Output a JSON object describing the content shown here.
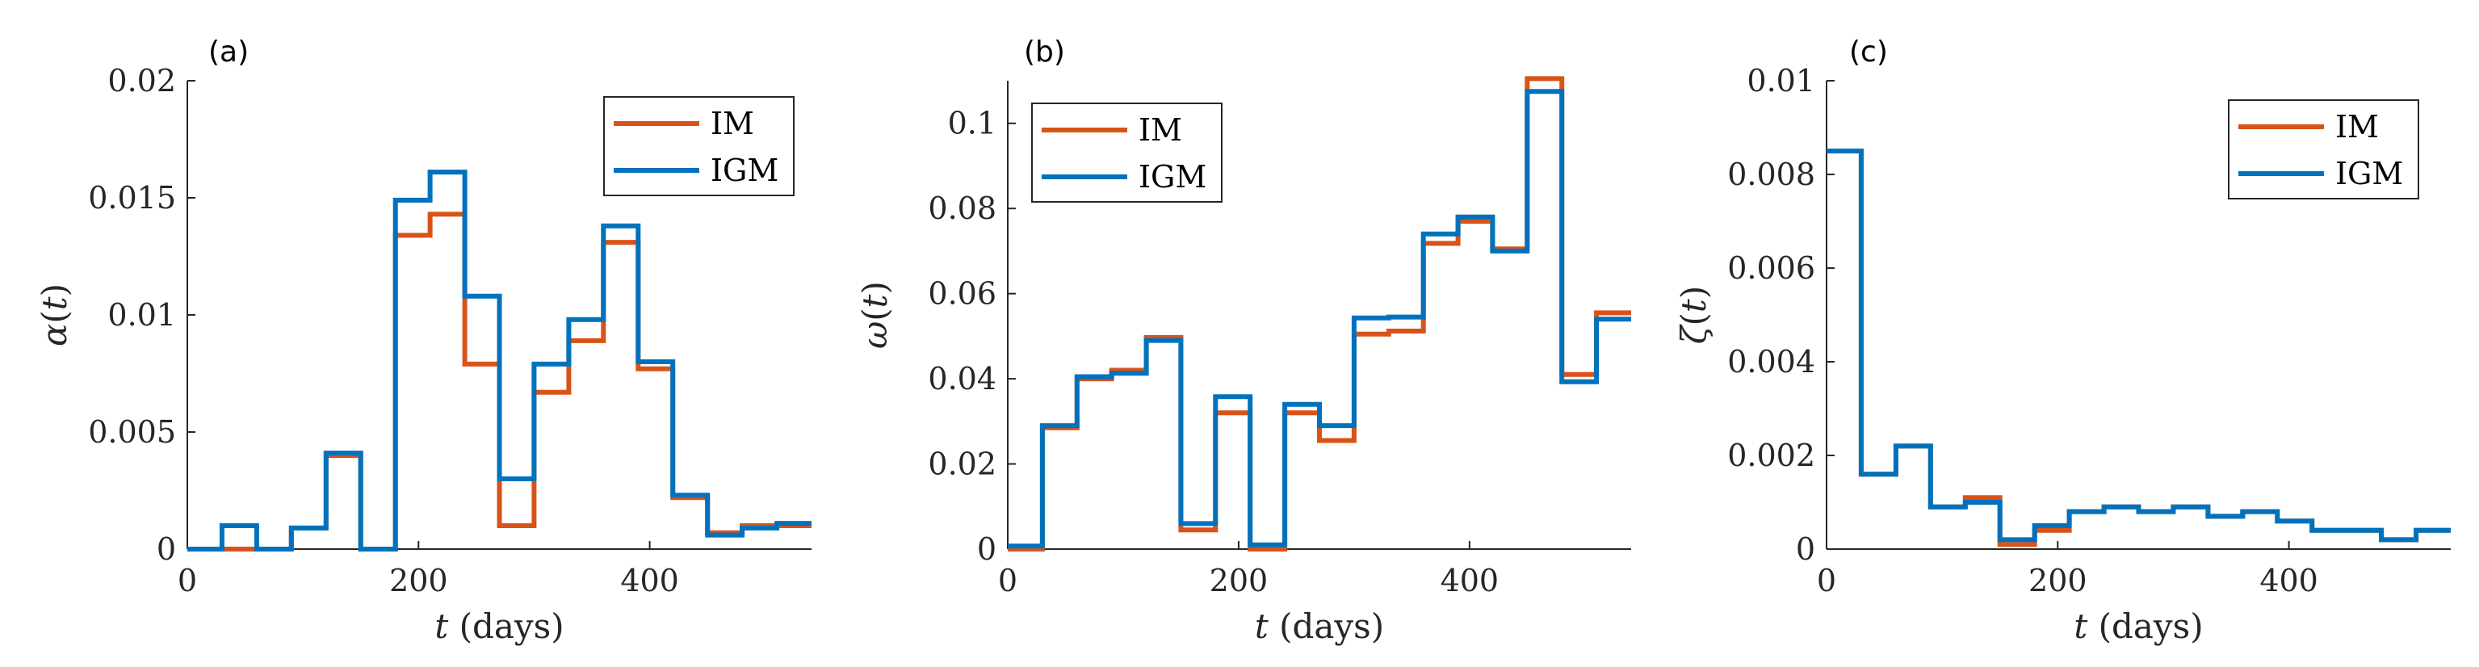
{
  "colors": {
    "IM": "#D95319",
    "IGM": "#0072BD",
    "axis": "#262626"
  },
  "chart_data": [
    {
      "type": "line",
      "panel": "(a)",
      "ylabel_symbol": "α",
      "xlabel_var": "t",
      "xlabel_unit": "(days)",
      "xlim": [
        0,
        540
      ],
      "ylim": [
        0,
        0.02
      ],
      "xticks": [
        0,
        200,
        400
      ],
      "xtick_labels": [
        "0",
        "200",
        "400"
      ],
      "yticks": [
        0,
        0.005,
        0.01,
        0.015,
        0.02
      ],
      "ytick_labels": [
        "0",
        "0.005",
        "0.01",
        "0.015",
        "0.02"
      ],
      "legend_position": "top-right",
      "x_edges": [
        0,
        30,
        60,
        90,
        120,
        150,
        180,
        210,
        240,
        270,
        300,
        330,
        360,
        390,
        420,
        450,
        480,
        510,
        540
      ],
      "series": [
        {
          "name": "IM",
          "values": [
            0,
            0,
            0,
            0.0009,
            0.004,
            0,
            0.0134,
            0.0143,
            0.0079,
            0.001,
            0.0067,
            0.0089,
            0.0131,
            0.0077,
            0.0022,
            0.0007,
            0.001,
            0.001
          ]
        },
        {
          "name": "IGM",
          "values": [
            0,
            0.001,
            0,
            0.0009,
            0.0041,
            0,
            0.0149,
            0.0161,
            0.0108,
            0.003,
            0.0079,
            0.0098,
            0.0138,
            0.008,
            0.0023,
            0.0006,
            0.0009,
            0.0011
          ]
        }
      ]
    },
    {
      "type": "line",
      "panel": "(b)",
      "ylabel_symbol": "ω",
      "xlabel_var": "t",
      "xlabel_unit": "(days)",
      "xlim": [
        0,
        540
      ],
      "ylim": [
        0,
        0.11
      ],
      "xticks": [
        0,
        200,
        400
      ],
      "xtick_labels": [
        "0",
        "200",
        "400"
      ],
      "yticks": [
        0,
        0.02,
        0.04,
        0.06,
        0.08,
        0.1
      ],
      "ytick_labels": [
        "0",
        "0.02",
        "0.04",
        "0.06",
        "0.08",
        "0.1"
      ],
      "legend_position": "top-left",
      "x_edges": [
        0,
        30,
        60,
        90,
        120,
        150,
        180,
        210,
        240,
        270,
        300,
        330,
        360,
        390,
        420,
        450,
        480,
        510,
        540
      ],
      "series": [
        {
          "name": "IM",
          "values": [
            0,
            0.0285,
            0.04,
            0.042,
            0.0497,
            0.0045,
            0.032,
            0,
            0.032,
            0.0255,
            0.0505,
            0.0512,
            0.0718,
            0.077,
            0.0705,
            0.1105,
            0.041,
            0.0555
          ]
        },
        {
          "name": "IGM",
          "values": [
            0.0007,
            0.029,
            0.0405,
            0.0413,
            0.049,
            0.006,
            0.0358,
            0.001,
            0.034,
            0.029,
            0.0543,
            0.0545,
            0.074,
            0.078,
            0.07,
            0.1075,
            0.0393,
            0.054
          ]
        }
      ]
    },
    {
      "type": "line",
      "panel": "(c)",
      "ylabel_symbol": "ζ",
      "xlabel_var": "t",
      "xlabel_unit": "(days)",
      "xlim": [
        0,
        540
      ],
      "ylim": [
        0,
        0.01
      ],
      "xticks": [
        0,
        200,
        400
      ],
      "xtick_labels": [
        "0",
        "200",
        "400"
      ],
      "yticks": [
        0,
        0.002,
        0.004,
        0.006,
        0.008,
        0.01
      ],
      "ytick_labels": [
        "0",
        "0.002",
        "0.004",
        "0.006",
        "0.008",
        "0.01"
      ],
      "legend_position": "top-right",
      "x_edges": [
        0,
        30,
        60,
        90,
        120,
        150,
        180,
        210,
        240,
        270,
        300,
        330,
        360,
        390,
        420,
        450,
        480,
        510,
        540
      ],
      "series": [
        {
          "name": "IM",
          "values": [
            0.0085,
            0.0016,
            0.0022,
            0.0009,
            0.0011,
            0.0001,
            0.0004,
            0.0008,
            0.0009,
            0.0008,
            0.0009,
            0.0007,
            0.0008,
            0.0006,
            0.0004,
            0.0004,
            0.0002,
            0.0004
          ]
        },
        {
          "name": "IGM",
          "values": [
            0.0085,
            0.0016,
            0.0022,
            0.0009,
            0.001,
            0.0002,
            0.0005,
            0.0008,
            0.0009,
            0.0008,
            0.0009,
            0.0007,
            0.0008,
            0.0006,
            0.0004,
            0.0004,
            0.0002,
            0.0004
          ]
        }
      ]
    }
  ]
}
